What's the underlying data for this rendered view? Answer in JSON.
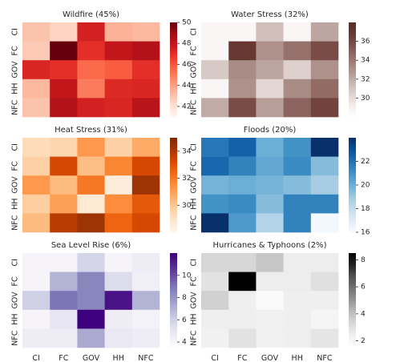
{
  "figure": {
    "row_labels": [
      "CI",
      "FC",
      "GOV",
      "HH",
      "NFC"
    ],
    "col_labels": [
      "CI",
      "FC",
      "GOV",
      "HH",
      "NFC"
    ]
  },
  "chart_data": [
    {
      "type": "heatmap",
      "title": "Wildfire (45%)",
      "colormap": "Reds",
      "vmin": 41,
      "vmax": 50,
      "colorbar_ticks": [
        42,
        44,
        46,
        48,
        50
      ],
      "x": [
        "CI",
        "FC",
        "GOV",
        "HH",
        "NFC"
      ],
      "y": [
        "CI",
        "FC",
        "GOV",
        "HH",
        "NFC"
      ],
      "values": [
        [
          43.0,
          42.5,
          47.5,
          43.5,
          43.3
        ],
        [
          42.8,
          50.0,
          47.0,
          48.0,
          48.5
        ],
        [
          47.3,
          47.0,
          45.5,
          45.8,
          47.0
        ],
        [
          43.3,
          48.0,
          45.0,
          47.2,
          47.3
        ],
        [
          43.0,
          48.5,
          47.5,
          47.3,
          48.3
        ]
      ]
    },
    {
      "type": "heatmap",
      "title": "Water Stress (32%)",
      "colormap": "Custom-Brown",
      "vmin": 28,
      "vmax": 38,
      "colorbar_ticks": [
        30,
        32,
        34,
        36
      ],
      "x": [
        "CI",
        "FC",
        "GOV",
        "HH",
        "NFC"
      ],
      "y": [
        "CI",
        "FC",
        "GOV",
        "HH",
        "NFC"
      ],
      "values": [
        [
          28.6,
          28.6,
          31.2,
          28.6,
          32.2
        ],
        [
          28.6,
          37.0,
          33.0,
          34.3,
          35.8
        ],
        [
          30.8,
          33.2,
          32.2,
          30.5,
          33.0
        ],
        [
          28.6,
          33.0,
          30.2,
          33.2,
          34.5
        ],
        [
          32.0,
          35.8,
          32.5,
          34.8,
          36.3
        ]
      ]
    },
    {
      "type": "heatmap",
      "title": "Heat Stress (31%)",
      "colormap": "Oranges",
      "vmin": 28,
      "vmax": 35,
      "colorbar_ticks": [
        30,
        32,
        34
      ],
      "x": [
        "CI",
        "FC",
        "GOV",
        "HH",
        "NFC"
      ],
      "y": [
        "CI",
        "FC",
        "GOV",
        "HH",
        "NFC"
      ],
      "values": [
        [
          29.3,
          29.5,
          31.2,
          29.7,
          30.7
        ],
        [
          29.7,
          33.3,
          30.2,
          31.7,
          33.3
        ],
        [
          31.2,
          30.3,
          32.0,
          28.5,
          34.3
        ],
        [
          29.8,
          31.0,
          28.7,
          31.5,
          32.8
        ],
        [
          30.3,
          33.8,
          34.3,
          32.5,
          33.3
        ]
      ]
    },
    {
      "type": "heatmap",
      "title": "Floods (20%)",
      "colormap": "Blues",
      "vmin": 16,
      "vmax": 24,
      "colorbar_ticks": [
        16,
        18,
        20,
        22
      ],
      "x": [
        "CI",
        "FC",
        "GOV",
        "HH",
        "NFC"
      ],
      "y": [
        "CI",
        "FC",
        "GOV",
        "HH",
        "NFC"
      ],
      "values": [
        [
          21.8,
          22.5,
          20.0,
          21.0,
          24.0
        ],
        [
          22.3,
          21.5,
          20.2,
          21.2,
          19.5
        ],
        [
          19.8,
          20.0,
          19.8,
          19.5,
          18.8
        ],
        [
          21.0,
          21.2,
          19.5,
          21.5,
          21.5
        ],
        [
          24.0,
          20.7,
          18.5,
          21.5,
          16.2
        ]
      ]
    },
    {
      "type": "heatmap",
      "title": "Sea Level Rise (6%)",
      "colormap": "Purples",
      "vmin": 3.5,
      "vmax": 12,
      "colorbar_ticks": [
        4,
        6,
        8,
        10
      ],
      "x": [
        "CI",
        "FC",
        "GOV",
        "HH",
        "NFC"
      ],
      "y": [
        "CI",
        "FC",
        "GOV",
        "HH",
        "NFC"
      ],
      "values": [
        [
          4.0,
          4.0,
          5.8,
          4.0,
          4.6
        ],
        [
          4.0,
          7.0,
          8.5,
          5.5,
          4.4
        ],
        [
          6.0,
          9.0,
          8.5,
          11.5,
          7.0
        ],
        [
          4.0,
          5.0,
          12.0,
          4.6,
          4.2
        ],
        [
          4.6,
          4.6,
          7.3,
          4.8,
          4.6
        ]
      ]
    },
    {
      "type": "heatmap",
      "title": "Hurricanes & Typhoons (2%)",
      "colormap": "Greys",
      "vmin": 1.5,
      "vmax": 8.5,
      "colorbar_ticks": [
        2,
        4,
        6,
        8
      ],
      "x": [
        "CI",
        "FC",
        "GOV",
        "HH",
        "NFC"
      ],
      "y": [
        "CI",
        "FC",
        "GOV",
        "HH",
        "NFC"
      ],
      "values": [
        [
          3.3,
          3.3,
          3.8,
          2.5,
          2.5
        ],
        [
          2.9,
          8.5,
          2.5,
          2.5,
          3.0
        ],
        [
          3.5,
          2.4,
          1.8,
          2.4,
          2.4
        ],
        [
          2.4,
          2.4,
          2.3,
          2.4,
          2.1
        ],
        [
          2.3,
          2.9,
          2.3,
          2.4,
          2.8
        ]
      ]
    }
  ]
}
